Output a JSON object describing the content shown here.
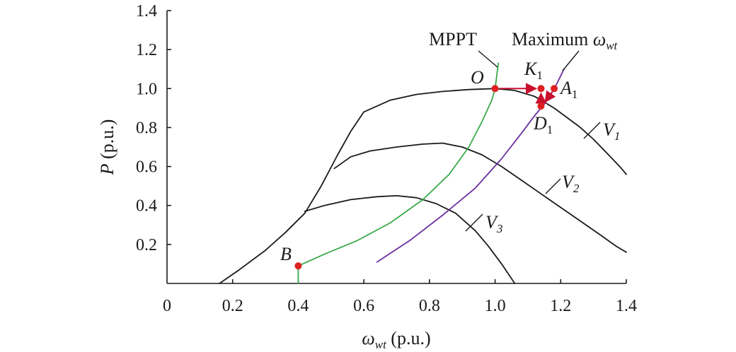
{
  "chart_data": {
    "type": "line",
    "xlabel": {
      "symbol": "ω",
      "sub": "wt",
      "unit": " (p.u.)"
    },
    "ylabel": {
      "symbol": "P",
      "unit": " (p.u.)"
    },
    "xlim": [
      0,
      1.4
    ],
    "ylim": [
      0,
      1.4
    ],
    "xticks": [
      0,
      0.2,
      0.4,
      0.6,
      0.8,
      1.0,
      1.2,
      1.4
    ],
    "xtick_labels": [
      "0",
      "0.2",
      "0.4",
      "0.6",
      "0.8",
      "1.0",
      "1.2",
      "1.4"
    ],
    "yticks": [
      0.2,
      0.4,
      0.6,
      0.8,
      1.0,
      1.2,
      1.4
    ],
    "ytick_labels": [
      "0.2",
      "0.4",
      "0.6",
      "0.8",
      "1.0",
      "1.2",
      "1.4"
    ],
    "grid": false,
    "colors": {
      "power": "#1a1a1a",
      "mppt": "#3aaa4a",
      "max_speed": "#6a2fa0",
      "point": "#e02020",
      "arrow": "#c8102e"
    },
    "series": [
      {
        "name": "V1",
        "sub": "1",
        "color": "#1a1a1a",
        "x": [
          0.16,
          0.22,
          0.3,
          0.36,
          0.42,
          0.47,
          0.52,
          0.56,
          0.6,
          0.68,
          0.76,
          0.84,
          0.92,
          1.0,
          1.06,
          1.12,
          1.18,
          1.22,
          1.26,
          1.3,
          1.34,
          1.38,
          1.4
        ],
        "y": [
          0.0,
          0.07,
          0.17,
          0.26,
          0.36,
          0.5,
          0.66,
          0.78,
          0.88,
          0.94,
          0.97,
          0.985,
          0.995,
          1.0,
          0.99,
          0.96,
          0.9,
          0.85,
          0.8,
          0.74,
          0.67,
          0.6,
          0.56
        ]
      },
      {
        "name": "V2",
        "sub": "2",
        "color": "#1a1a1a",
        "x": [
          0.51,
          0.56,
          0.62,
          0.7,
          0.78,
          0.84,
          0.9,
          0.96,
          1.02,
          1.08,
          1.14,
          1.2,
          1.26,
          1.32,
          1.37,
          1.4
        ],
        "y": [
          0.59,
          0.65,
          0.68,
          0.7,
          0.715,
          0.72,
          0.7,
          0.66,
          0.6,
          0.53,
          0.46,
          0.39,
          0.32,
          0.25,
          0.19,
          0.16
        ]
      },
      {
        "name": "V3",
        "sub": "3",
        "color": "#1a1a1a",
        "x": [
          0.42,
          0.48,
          0.56,
          0.64,
          0.7,
          0.76,
          0.82,
          0.88,
          0.94,
          0.98,
          1.02,
          1.06
        ],
        "y": [
          0.37,
          0.4,
          0.43,
          0.445,
          0.45,
          0.44,
          0.41,
          0.36,
          0.27,
          0.19,
          0.1,
          0.0
        ]
      },
      {
        "name": "MPPT",
        "color": "#3aaa4a",
        "x": [
          0.4,
          0.4,
          0.48,
          0.58,
          0.68,
          0.78,
          0.86,
          0.92,
          0.96,
          0.99,
          1.0,
          1.01
        ],
        "y": [
          0.0,
          0.09,
          0.15,
          0.22,
          0.31,
          0.43,
          0.56,
          0.7,
          0.83,
          0.94,
          1.0,
          1.13
        ]
      },
      {
        "name": "Maximum ωwt",
        "color": "#6a2fa0",
        "x": [
          0.64,
          0.74,
          0.84,
          0.94,
          1.02,
          1.08,
          1.12,
          1.15,
          1.17,
          1.19,
          1.21
        ],
        "y": [
          0.11,
          0.22,
          0.35,
          0.49,
          0.64,
          0.77,
          0.86,
          0.92,
          0.97,
          1.03,
          1.1
        ]
      }
    ],
    "points": [
      {
        "label": "O",
        "x": 1.0,
        "y": 1.0
      },
      {
        "label": "K",
        "sub": "1",
        "x": 1.14,
        "y": 1.0
      },
      {
        "label": "A",
        "sub": "1",
        "x": 1.18,
        "y": 1.0
      },
      {
        "label": "D",
        "sub": "1",
        "x": 1.14,
        "y": 0.91
      },
      {
        "label": "B",
        "x": 0.4,
        "y": 0.09
      }
    ],
    "annotations": [
      {
        "text": "MPPT"
      },
      {
        "text": "Maximum ",
        "symbol": "ω",
        "sub": "wt"
      }
    ]
  }
}
